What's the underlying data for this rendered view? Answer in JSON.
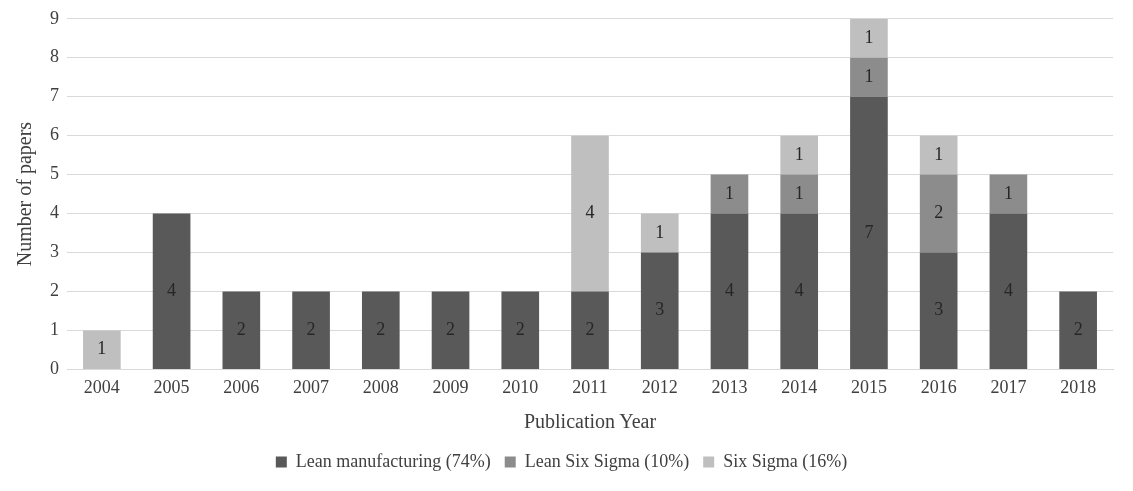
{
  "chart_data": {
    "type": "bar",
    "stacked": true,
    "xlabel": "Publication Year",
    "ylabel": "Number of papers",
    "categories": [
      "2004",
      "2005",
      "2006",
      "2007",
      "2008",
      "2009",
      "2010",
      "2011",
      "2012",
      "2013",
      "2014",
      "2015",
      "2016",
      "2017",
      "2018"
    ],
    "series": [
      {
        "name": "Lean manufacturing (74%)",
        "color": "#595959",
        "values": [
          null,
          4,
          2,
          2,
          2,
          2,
          2,
          2,
          3,
          4,
          4,
          7,
          3,
          4,
          2
        ]
      },
      {
        "name": "Lean Six Sigma (10%)",
        "color": "#8c8c8c",
        "values": [
          null,
          null,
          null,
          null,
          null,
          null,
          null,
          null,
          null,
          1,
          1,
          1,
          2,
          1,
          null
        ]
      },
      {
        "name": "Six Sigma (16%)",
        "color": "#bfbfbf",
        "values": [
          1,
          null,
          null,
          null,
          null,
          null,
          null,
          4,
          1,
          null,
          1,
          1,
          1,
          null,
          null
        ]
      }
    ],
    "ylim": [
      0,
      9
    ],
    "yticks": [
      0,
      1,
      2,
      3,
      4,
      5,
      6,
      7,
      8,
      9
    ],
    "grid": "y",
    "legend": "bottom",
    "data_labels": true
  }
}
